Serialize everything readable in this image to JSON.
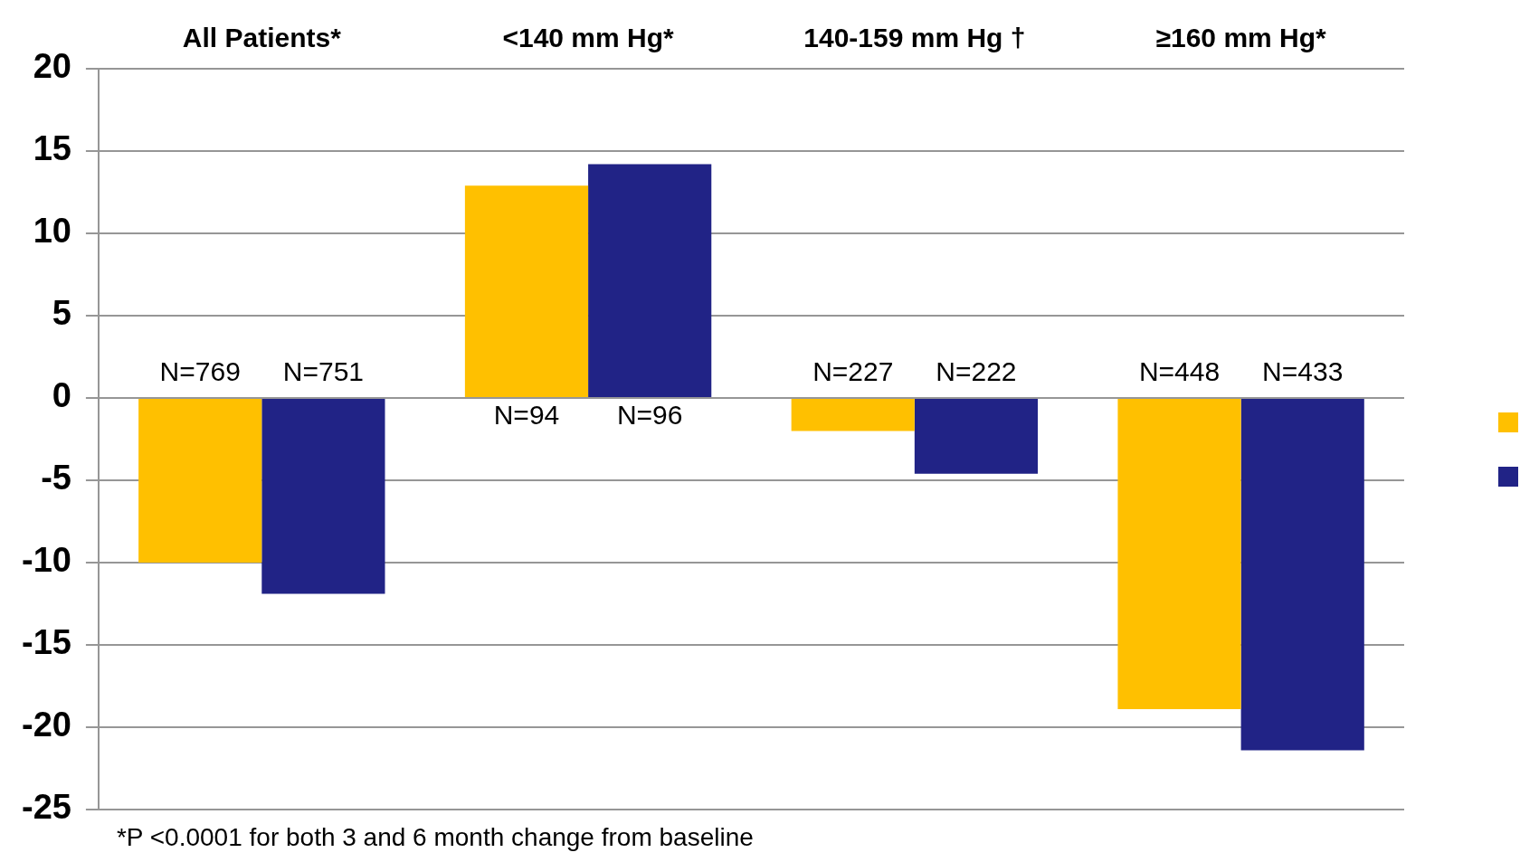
{
  "chart_data": {
    "type": "bar",
    "categories": [
      "All Patients*",
      "<140 mm Hg*",
      "140-159 mm Hg †",
      "≥160 mm Hg*"
    ],
    "series": [
      {
        "color": "#ffc000",
        "values": [
          -10.0,
          12.9,
          -2.0,
          -18.9
        ]
      },
      {
        "color": "#212386",
        "values": [
          -11.9,
          14.2,
          -4.6,
          -21.4
        ]
      }
    ],
    "ylim": [
      -25,
      20
    ],
    "yticks": [
      -25,
      -20,
      -15,
      -10,
      -5,
      0,
      5,
      10,
      15,
      20
    ],
    "grid": "y",
    "annotations": [
      {
        "text": "N=769",
        "x": "All Patients*",
        "y": 0
      },
      {
        "text": "N=751",
        "x": "All Patients*",
        "y": 0
      },
      {
        "text": "N=94",
        "x": "<140 mm Hg*",
        "y": 0
      },
      {
        "text": "N=96",
        "x": "<140 mm Hg*",
        "y": 0
      },
      {
        "text": "N=227",
        "x": "140-159 mm Hg †",
        "y": 0
      },
      {
        "text": "N=222",
        "x": "140-159 mm Hg †",
        "y": 0
      },
      {
        "text": "N=448",
        "x": "≥160 mm Hg*",
        "y": 0
      },
      {
        "text": "N=433",
        "x": "≥160 mm Hg*",
        "y": 0
      },
      "*P <0.0001 for both 3 and 6 month change from baseline"
    ]
  }
}
